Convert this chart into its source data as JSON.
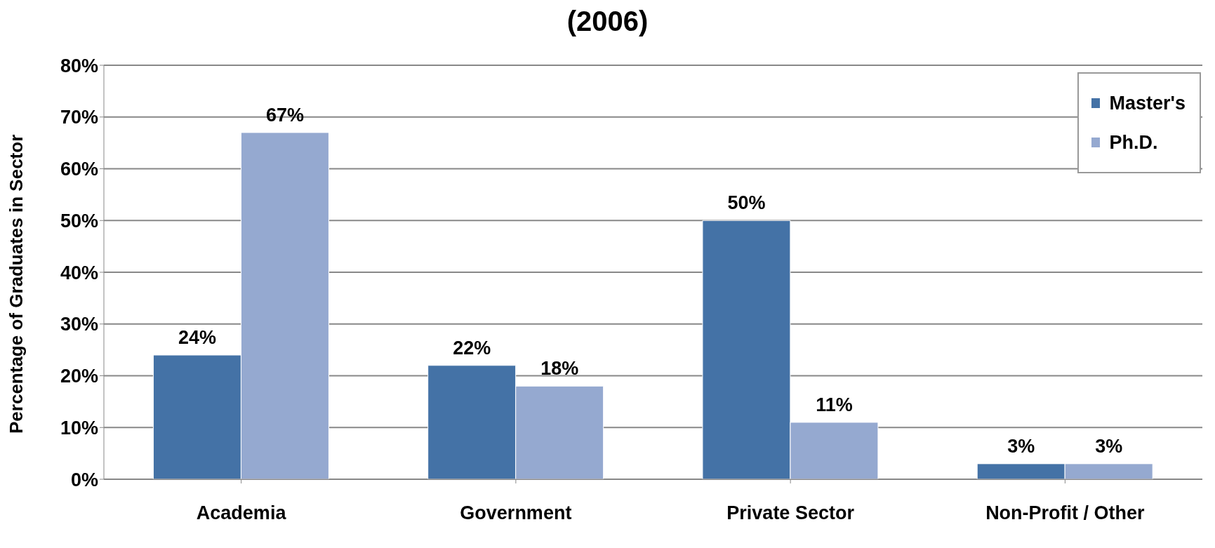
{
  "chart_data": {
    "type": "bar",
    "title": "(2006)",
    "ylabel": "Percentage  of  Graduates  in  Sector",
    "categories": [
      "Academia",
      "Government",
      "Private Sector",
      "Non-Profit / Other"
    ],
    "series": [
      {
        "name": "Master's",
        "color": "#4472a6",
        "values": [
          24,
          22,
          50,
          3
        ],
        "value_labels": [
          "24%",
          "22%",
          "50%",
          "3%"
        ]
      },
      {
        "name": "Ph.D.",
        "color": "#95a9d0",
        "values": [
          67,
          18,
          11,
          3
        ],
        "value_labels": [
          "67%",
          "18%",
          "11%",
          "3%"
        ]
      }
    ],
    "ylim": [
      0,
      80
    ],
    "yticks": [
      {
        "value": 0,
        "label": "0%"
      },
      {
        "value": 10,
        "label": "10%"
      },
      {
        "value": 20,
        "label": "20%"
      },
      {
        "value": 30,
        "label": "30%"
      },
      {
        "value": 40,
        "label": "40%"
      },
      {
        "value": 50,
        "label": "50%"
      },
      {
        "value": 60,
        "label": "60%"
      },
      {
        "value": 70,
        "label": "70%"
      },
      {
        "value": 80,
        "label": "80%"
      }
    ],
    "grid": "y",
    "legend": "top right"
  }
}
